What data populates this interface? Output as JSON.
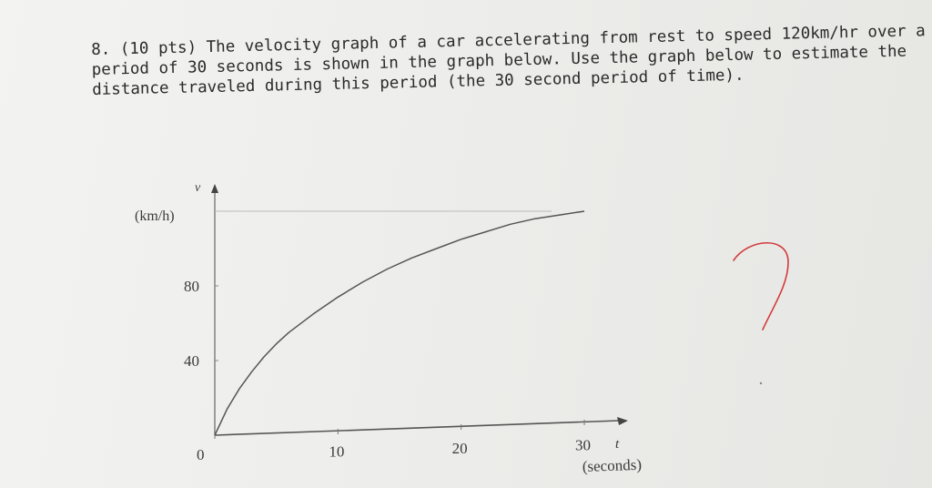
{
  "problem": {
    "lines": [
      "8. (10 pts) The velocity graph of a car accelerating from rest to speed 120km/hr over a",
      "period of 30 seconds is shown in the graph below. Use the graph below to estimate the",
      "distance traveled during this period (the 30 second period of time)."
    ]
  },
  "chart_data": {
    "type": "line",
    "title": "",
    "ylabel_symbol": "v",
    "ylabel_unit": "(km/h)",
    "xlabel_symbol": "t",
    "xlabel_unit": "(seconds)",
    "xlim": [
      0,
      30
    ],
    "ylim": [
      0,
      120
    ],
    "x_ticks": [
      {
        "value": 0,
        "label": "0"
      },
      {
        "value": 10,
        "label": "10"
      },
      {
        "value": 20,
        "label": "20"
      },
      {
        "value": 30,
        "label": "30"
      }
    ],
    "y_ticks": [
      {
        "value": 40,
        "label": "40"
      },
      {
        "value": 80,
        "label": "80"
      }
    ],
    "grid": false,
    "series": [
      {
        "x": [
          0,
          1,
          2,
          3,
          4,
          5,
          6,
          8,
          10,
          12,
          14,
          16,
          18,
          20,
          22,
          24,
          26,
          28,
          30
        ],
        "y": [
          0,
          14,
          25,
          34,
          42,
          49,
          55,
          65,
          74,
          82,
          89,
          95,
          100,
          105,
          109,
          113,
          116,
          118,
          120
        ]
      }
    ]
  },
  "annotation": {
    "mark": "?"
  }
}
